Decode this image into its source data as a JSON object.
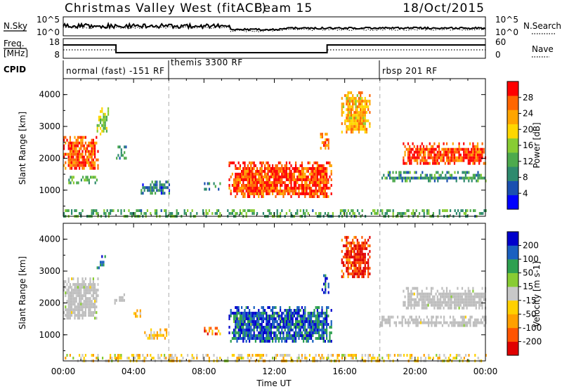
{
  "header": {
    "title": "Christmas Valley West (fitACF)",
    "beam": "Beam 15",
    "date": "18/Oct/2015"
  },
  "noise_panel": {
    "left_label": "N.Sky",
    "right_label": "N.Search",
    "left_ticks": [
      "10^5",
      "10^0"
    ],
    "right_ticks": [
      "10^5",
      "10^0"
    ]
  },
  "freq_panel": {
    "left_label_line1": "Freq.",
    "left_label_line2": "[MHz]",
    "right_label": "Nave",
    "left_ticks": [
      "18",
      "8"
    ],
    "right_ticks": [
      "60",
      "0"
    ]
  },
  "cpid": {
    "label": "CPID",
    "segments": [
      {
        "name": "normal (fast) -151 RF",
        "start_hour": 0
      },
      {
        "name": "themis 3300 RF",
        "start_hour": 6
      },
      {
        "name": "rbsp 201 RF",
        "start_hour": 18
      }
    ]
  },
  "time_axis": {
    "label": "Time UT",
    "ticks": [
      "00:00",
      "04:00",
      "08:00",
      "12:00",
      "16:00",
      "20:00",
      "00:00"
    ]
  },
  "colors": {
    "power": [
      "#0000ff",
      "#1a4fb0",
      "#2e8a6e",
      "#4daa4d",
      "#88cc33",
      "#ffd700",
      "#ffa500",
      "#ff6600",
      "#ff0000"
    ],
    "velocity": [
      "#e00000",
      "#ff5500",
      "#ffa000",
      "#ffd000",
      "#c8c8c8",
      "#88cc33",
      "#2ea050",
      "#1a60c0",
      "#0000cc"
    ],
    "ground_scatter": "#bebebe"
  },
  "chart_data": [
    {
      "type": "heatmap",
      "title": "Power",
      "ylabel": "Slant Range [km]",
      "xlabel": "",
      "x_range_hours": [
        0,
        24
      ],
      "ylim": [
        180,
        4500
      ],
      "y_ticks": [
        1000,
        2000,
        3000,
        4000
      ],
      "colorbar": {
        "label": "Power [dB]",
        "ticks": [
          4,
          8,
          12,
          16,
          20,
          24,
          28
        ],
        "range": [
          0,
          32
        ]
      },
      "regions": [
        {
          "t0": 0.0,
          "t1": 2.0,
          "r0": 1700,
          "r1": 2700,
          "value": 27
        },
        {
          "t0": 0.2,
          "t1": 1.9,
          "r0": 1250,
          "r1": 1450,
          "value": 12
        },
        {
          "t0": 1.9,
          "t1": 2.6,
          "r0": 2800,
          "r1": 3600,
          "value": 16
        },
        {
          "t0": 3.0,
          "t1": 3.6,
          "r0": 2000,
          "r1": 2400,
          "value": 10
        },
        {
          "t0": 4.4,
          "t1": 6.0,
          "r0": 900,
          "r1": 1300,
          "value": 8
        },
        {
          "t0": 8.0,
          "t1": 8.9,
          "r0": 1000,
          "r1": 1250,
          "value": 8
        },
        {
          "t0": 9.4,
          "t1": 15.2,
          "r0": 800,
          "r1": 1900,
          "value": 28
        },
        {
          "t0": 14.6,
          "t1": 15.1,
          "r0": 2300,
          "r1": 2800,
          "value": 24
        },
        {
          "t0": 15.8,
          "t1": 17.4,
          "r0": 2800,
          "r1": 4100,
          "value": 22
        },
        {
          "t0": 19.3,
          "t1": 24.0,
          "r0": 1800,
          "r1": 2500,
          "value": 28
        },
        {
          "t0": 18.0,
          "t1": 24.0,
          "r0": 1300,
          "r1": 1600,
          "value": 10
        },
        {
          "t0": 0.0,
          "t1": 24.0,
          "r0": 180,
          "r1": 400,
          "value": 12
        }
      ]
    },
    {
      "type": "heatmap",
      "title": "Velocity",
      "ylabel": "Slant Range [km]",
      "xlabel": "Time UT",
      "x_range_hours": [
        0,
        24
      ],
      "ylim": [
        180,
        4500
      ],
      "y_ticks": [
        1000,
        2000,
        3000,
        4000
      ],
      "colorbar": {
        "label": "Velocity [m s-1]",
        "tick_labels": [
          "-200",
          "-100",
          "-50",
          "-15",
          "15",
          "50",
          "100",
          "200"
        ],
        "range": [
          -250,
          250
        ]
      },
      "regions": [
        {
          "t0": 0.0,
          "t1": 2.0,
          "r0": 1500,
          "r1": 2800,
          "value": 0,
          "ground_scatter": true
        },
        {
          "t0": 1.9,
          "t1": 2.5,
          "r0": 3100,
          "r1": 3500,
          "value": 180
        },
        {
          "t0": 2.9,
          "t1": 3.6,
          "r0": 2000,
          "r1": 2300,
          "value": 0,
          "ground_scatter": true
        },
        {
          "t0": 3.9,
          "t1": 4.4,
          "r0": 1600,
          "r1": 1800,
          "value": -60
        },
        {
          "t0": 4.6,
          "t1": 5.9,
          "r0": 900,
          "r1": 1200,
          "value": -60
        },
        {
          "t0": 8.0,
          "t1": 8.9,
          "r0": 1000,
          "r1": 1250,
          "value": -120
        },
        {
          "t0": 9.4,
          "t1": 15.2,
          "r0": 800,
          "r1": 1900,
          "value": 160
        },
        {
          "t0": 14.6,
          "t1": 15.1,
          "r0": 2300,
          "r1": 2900,
          "value": 200
        },
        {
          "t0": 15.8,
          "t1": 17.4,
          "r0": 2800,
          "r1": 4100,
          "value": -200
        },
        {
          "t0": 19.3,
          "t1": 24.0,
          "r0": 1800,
          "r1": 2500,
          "value": 0,
          "ground_scatter": true
        },
        {
          "t0": 18.0,
          "t1": 24.0,
          "r0": 1300,
          "r1": 1600,
          "value": 0,
          "ground_scatter": true
        },
        {
          "t0": 0.0,
          "t1": 24.0,
          "r0": 180,
          "r1": 400,
          "value": -40
        }
      ]
    }
  ]
}
